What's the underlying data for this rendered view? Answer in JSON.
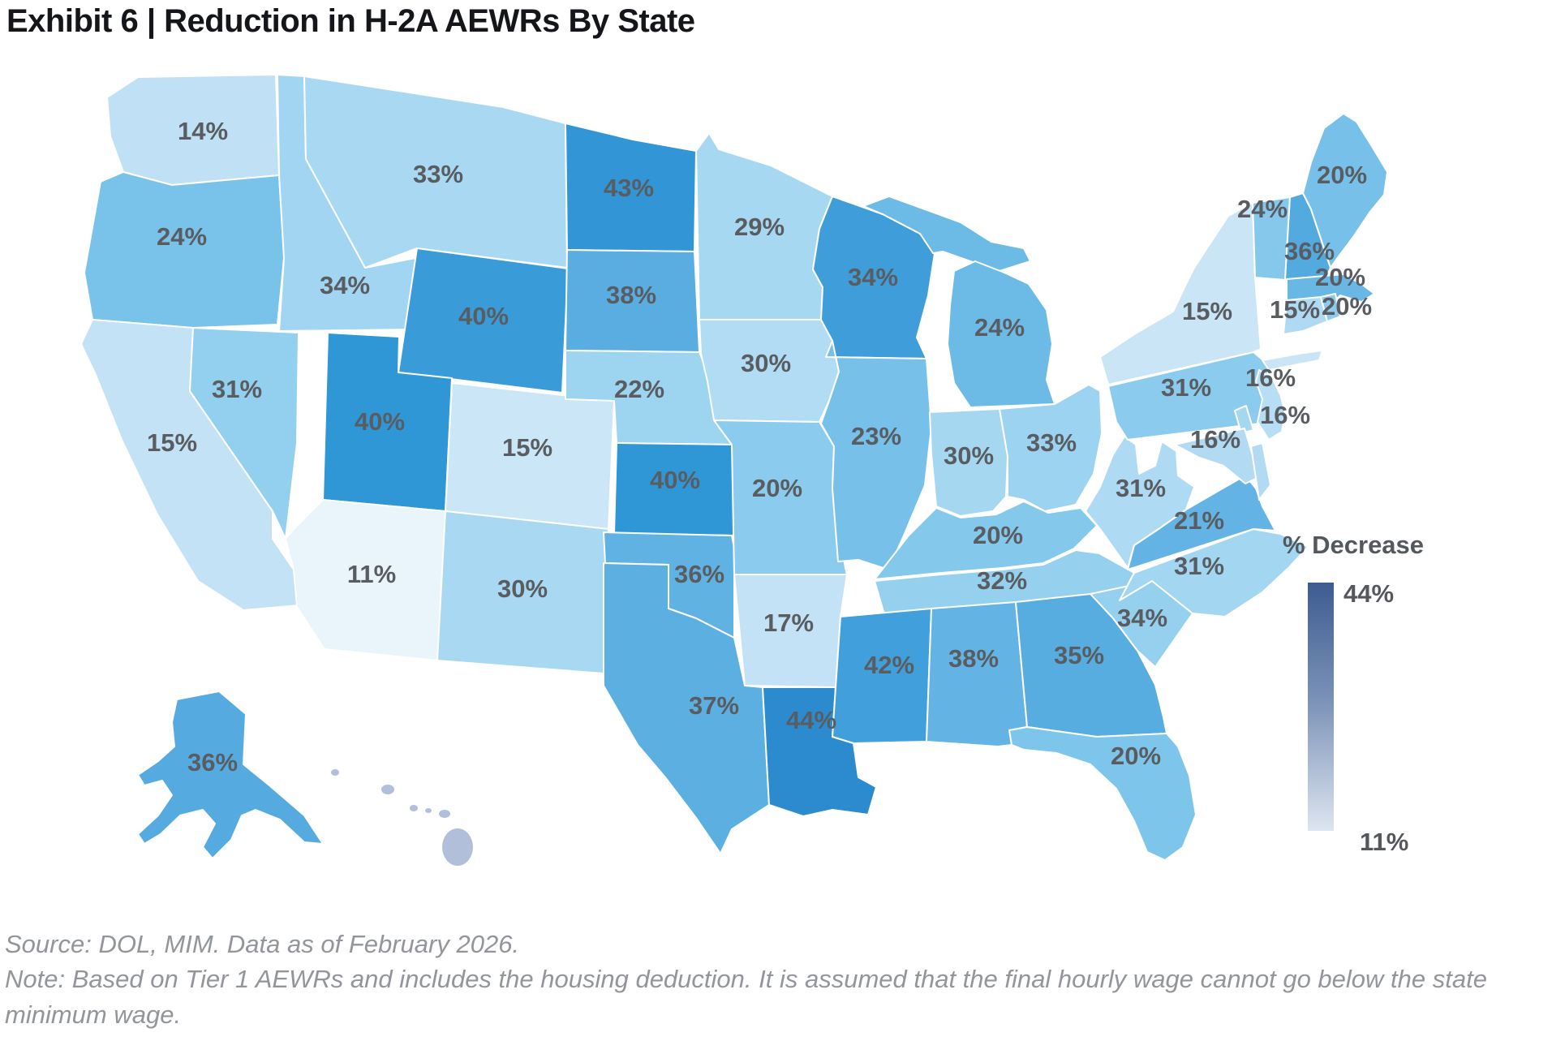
{
  "title": {
    "text": "Exhibit 6 | Reduction in H-2A AEWRs By State"
  },
  "legend": {
    "title": "% Decrease",
    "max_label": "44%",
    "min_label": "11%",
    "color_top": "#3d5c90",
    "color_mid": "#7c93b8",
    "color_bottom": "#dde5f0"
  },
  "footer": {
    "source": "Source: DOL, MIM. Data as of February 2026.",
    "note": "Note: Based on Tier 1 AEWRs and includes the housing deduction. It is assumed that the final hourly wage cannot go below the state minimum wage."
  },
  "chart_data": {
    "type": "heatmap",
    "subtype": "us-state-choropleth",
    "title": "Reduction in H-2A AEWRs By State",
    "legend_title": "% Decrease",
    "unit": "%",
    "scale": {
      "min": 11,
      "max": 44
    },
    "states": [
      {
        "abbr": "WA",
        "name": "Washington",
        "value": 14,
        "label": "14%",
        "fill": "#c0e0f5"
      },
      {
        "abbr": "OR",
        "name": "Oregon",
        "value": 24,
        "label": "24%",
        "fill": "#79c2ea"
      },
      {
        "abbr": "CA",
        "name": "California",
        "value": 15,
        "label": "15%",
        "fill": "#c4e2f5"
      },
      {
        "abbr": "NV",
        "name": "Nevada",
        "value": 31,
        "label": "31%",
        "fill": "#93cfee"
      },
      {
        "abbr": "ID",
        "name": "Idaho",
        "value": 34,
        "label": "34%",
        "fill": "#a2d5f1"
      },
      {
        "abbr": "MT",
        "name": "Montana",
        "value": 33,
        "label": "33%",
        "fill": "#a9d9f2"
      },
      {
        "abbr": "WY",
        "name": "Wyoming",
        "value": 40,
        "label": "40%",
        "fill": "#3a9bd9"
      },
      {
        "abbr": "UT",
        "name": "Utah",
        "value": 40,
        "label": "40%",
        "fill": "#3097d7"
      },
      {
        "abbr": "CO",
        "name": "Colorado",
        "value": 15,
        "label": "15%",
        "fill": "#cbe6f7"
      },
      {
        "abbr": "AZ",
        "name": "Arizona",
        "value": 11,
        "label": "11%",
        "fill": "#e9f4fb"
      },
      {
        "abbr": "NM",
        "name": "New Mexico",
        "value": 30,
        "label": "30%",
        "fill": "#a8d8f2"
      },
      {
        "abbr": "ND",
        "name": "North Dakota",
        "value": 43,
        "label": "43%",
        "fill": "#3295d6"
      },
      {
        "abbr": "SD",
        "name": "South Dakota",
        "value": 38,
        "label": "38%",
        "fill": "#5aade0"
      },
      {
        "abbr": "NE",
        "name": "Nebraska",
        "value": 22,
        "label": "22%",
        "fill": "#9dd4f0"
      },
      {
        "abbr": "KS",
        "name": "Kansas",
        "value": 40,
        "label": "40%",
        "fill": "#3097d7"
      },
      {
        "abbr": "OK",
        "name": "Oklahoma",
        "value": 36,
        "label": "36%",
        "fill": "#60b2e3"
      },
      {
        "abbr": "TX",
        "name": "Texas",
        "value": 37,
        "label": "37%",
        "fill": "#5bafe1"
      },
      {
        "abbr": "MN",
        "name": "Minnesota",
        "value": 29,
        "label": "29%",
        "fill": "#a7d8f1"
      },
      {
        "abbr": "IA",
        "name": "Iowa",
        "value": 30,
        "label": "30%",
        "fill": "#b2dcf3"
      },
      {
        "abbr": "MO",
        "name": "Missouri",
        "value": 20,
        "label": "20%",
        "fill": "#8bcbed"
      },
      {
        "abbr": "AR",
        "name": "Arkansas",
        "value": 17,
        "label": "17%",
        "fill": "#c3e2f6"
      },
      {
        "abbr": "LA",
        "name": "Louisiana",
        "value": 44,
        "label": "44%",
        "fill": "#2c8bce"
      },
      {
        "abbr": "WI",
        "name": "Wisconsin",
        "value": 34,
        "label": "34%",
        "fill": "#3f9eda"
      },
      {
        "abbr": "IL",
        "name": "Illinois",
        "value": 23,
        "label": "23%",
        "fill": "#76c0e9"
      },
      {
        "abbr": "MI",
        "name": "Michigan",
        "value": 24,
        "label": "24%",
        "fill": "#6cbbe7"
      },
      {
        "abbr": "IN",
        "name": "Indiana",
        "value": 30,
        "label": "30%",
        "fill": "#a6d7f1"
      },
      {
        "abbr": "OH",
        "name": "Ohio",
        "value": 33,
        "label": "33%",
        "fill": "#9cd3f0"
      },
      {
        "abbr": "KY",
        "name": "Kentucky",
        "value": 20,
        "label": "20%",
        "fill": "#84c8ec"
      },
      {
        "abbr": "TN",
        "name": "Tennessee",
        "value": 32,
        "label": "32%",
        "fill": "#95d0ef"
      },
      {
        "abbr": "MS",
        "name": "Mississippi",
        "value": 42,
        "label": "42%",
        "fill": "#41a0db"
      },
      {
        "abbr": "AL",
        "name": "Alabama",
        "value": 38,
        "label": "38%",
        "fill": "#63b4e4"
      },
      {
        "abbr": "GA",
        "name": "Georgia",
        "value": 35,
        "label": "35%",
        "fill": "#57ace0"
      },
      {
        "abbr": "FL",
        "name": "Florida",
        "value": 20,
        "label": "20%",
        "fill": "#7ec5eb"
      },
      {
        "abbr": "SC",
        "name": "South Carolina",
        "value": 34,
        "label": "34%",
        "fill": "#95d0ef"
      },
      {
        "abbr": "NC",
        "name": "North Carolina",
        "value": 31,
        "label": "31%",
        "fill": "#a3d6f1"
      },
      {
        "abbr": "VA",
        "name": "Virginia",
        "value": 21,
        "label": "21%",
        "fill": "#63b4e4"
      },
      {
        "abbr": "WV",
        "name": "West Virginia",
        "value": 31,
        "label": "31%",
        "fill": "#afdaf3"
      },
      {
        "abbr": "PA",
        "name": "Pennsylvania",
        "value": 31,
        "label": "31%",
        "fill": "#8bcbed"
      },
      {
        "abbr": "NY",
        "name": "New York",
        "value": 15,
        "label": "15%",
        "fill": "#c9e5f6"
      },
      {
        "abbr": "NJ",
        "name": "New Jersey",
        "value": 16,
        "label": "16%",
        "fill": "#b7def4"
      },
      {
        "abbr": "DE",
        "name": "Delaware",
        "value": 16,
        "label": "16%",
        "fill": "#a6d7f1"
      },
      {
        "abbr": "MD",
        "name": "Maryland",
        "value": 16,
        "label": "16%",
        "fill": "#b2dbf3"
      },
      {
        "abbr": "VT",
        "name": "Vermont",
        "value": 24,
        "label": "24%",
        "fill": "#85c8ec"
      },
      {
        "abbr": "NH",
        "name": "New Hampshire",
        "value": 36,
        "label": "36%",
        "fill": "#53aadf"
      },
      {
        "abbr": "ME",
        "name": "Maine",
        "value": 20,
        "label": "20%",
        "fill": "#76c0e9"
      },
      {
        "abbr": "MA",
        "name": "Massachusetts",
        "value": 20,
        "label": "20%",
        "fill": "#68b7e5"
      },
      {
        "abbr": "CT",
        "name": "Connecticut",
        "value": 15,
        "label": "15%",
        "fill": "#b0daf3"
      },
      {
        "abbr": "RI",
        "name": "Rhode Island",
        "value": 20,
        "label": "20%",
        "fill": "#8ccbed"
      },
      {
        "abbr": "AK",
        "name": "Alaska",
        "value": 36,
        "label": "36%",
        "fill": "#55abe0"
      },
      {
        "abbr": "HI",
        "name": "Hawaii",
        "value": null,
        "label": "",
        "fill": "#b2bfda"
      }
    ]
  }
}
